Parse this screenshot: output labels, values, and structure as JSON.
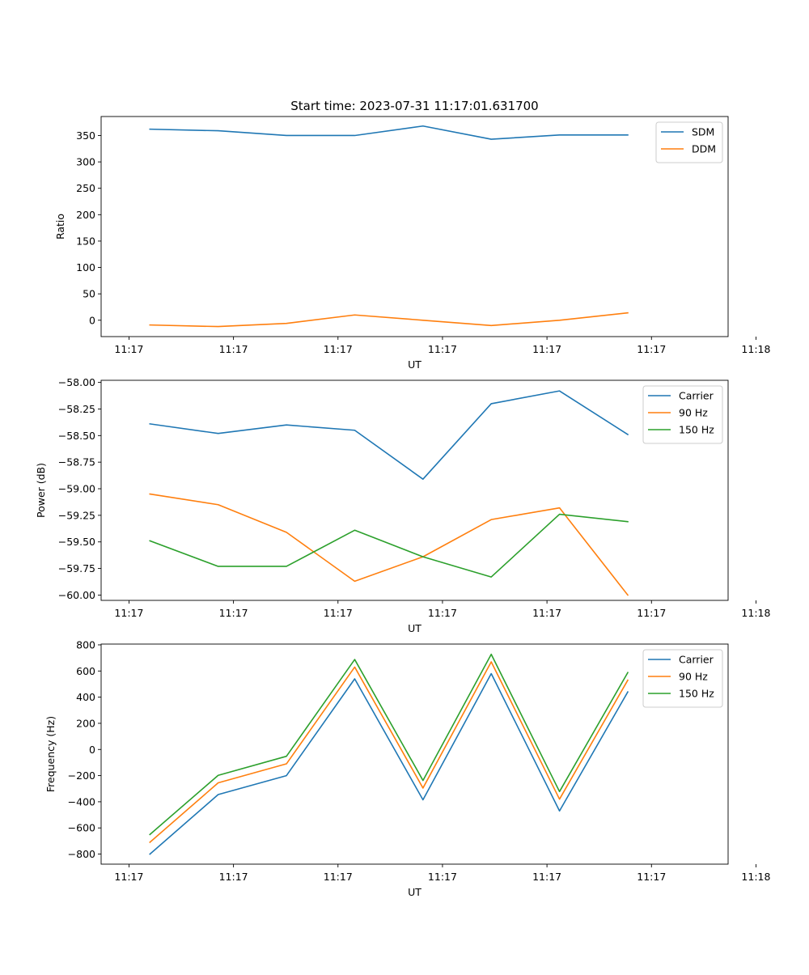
{
  "chart_data": [
    {
      "type": "line",
      "title": "Start time: 2023-07-31 11:17:01.631700",
      "xlabel": "UT",
      "ylabel": "Ratio",
      "xlim": [
        -0.4,
        8.6
      ],
      "ylim": [
        -31,
        386
      ],
      "yticks": [
        0,
        50,
        100,
        150,
        200,
        250,
        300,
        350
      ],
      "ytick_labels": [
        "0",
        "50",
        "100",
        "150",
        "200",
        "250",
        "300",
        "350"
      ],
      "xticks": [
        0,
        1.5,
        3,
        4.5,
        6,
        7.5,
        9
      ],
      "xtick_labels": [
        "11:17",
        "11:17",
        "11:17",
        "11:17",
        "11:17",
        "11:17",
        "11:18"
      ],
      "x": [
        0.3,
        1.28,
        2.26,
        3.24,
        4.22,
        5.2,
        6.18,
        7.16
      ],
      "legend_position": "top-right",
      "series": [
        {
          "name": "SDM",
          "color": "#1f77b4",
          "values": [
            362,
            359,
            350,
            350,
            368,
            343,
            351,
            351
          ]
        },
        {
          "name": "DDM",
          "color": "#ff7f0e",
          "values": [
            -9,
            -12,
            -6,
            10,
            0,
            -10,
            0,
            14
          ]
        }
      ]
    },
    {
      "type": "line",
      "title": "",
      "xlabel": "UT",
      "ylabel": "Power (dB)",
      "xlim": [
        -0.4,
        8.6
      ],
      "ylim": [
        -60.05,
        -57.98
      ],
      "yticks": [
        -60.0,
        -59.75,
        -59.5,
        -59.25,
        -59.0,
        -58.75,
        -58.5,
        -58.25,
        -58.0
      ],
      "ytick_labels": [
        "−60.00",
        "−59.75",
        "−59.50",
        "−59.25",
        "−59.00",
        "−58.75",
        "−58.50",
        "−58.25",
        "−58.00"
      ],
      "xticks": [
        0,
        1.5,
        3,
        4.5,
        6,
        7.5,
        9
      ],
      "xtick_labels": [
        "11:17",
        "11:17",
        "11:17",
        "11:17",
        "11:17",
        "11:17",
        "11:18"
      ],
      "x": [
        0.3,
        1.28,
        2.26,
        3.24,
        4.22,
        5.2,
        6.18,
        7.16
      ],
      "legend_position": "top-right",
      "series": [
        {
          "name": "Carrier",
          "color": "#1f77b4",
          "values": [
            -58.39,
            -58.48,
            -58.4,
            -58.45,
            -58.91,
            -58.2,
            -58.08,
            -58.49
          ]
        },
        {
          "name": "90 Hz",
          "color": "#ff7f0e",
          "values": [
            -59.05,
            -59.15,
            -59.41,
            -59.87,
            -59.64,
            -59.29,
            -59.18,
            -60.0
          ]
        },
        {
          "name": "150 Hz",
          "color": "#2ca02c",
          "values": [
            -59.49,
            -59.73,
            -59.73,
            -59.39,
            -59.64,
            -59.83,
            -59.24,
            -59.31
          ]
        }
      ]
    },
    {
      "type": "line",
      "title": "",
      "xlabel": "UT",
      "ylabel": "Frequency (Hz)",
      "xlim": [
        -0.4,
        8.6
      ],
      "ylim": [
        -877,
        806
      ],
      "yticks": [
        -800,
        -600,
        -400,
        -200,
        0,
        200,
        400,
        600,
        800
      ],
      "ytick_labels": [
        "−800",
        "−600",
        "−400",
        "−200",
        "0",
        "200",
        "400",
        "600",
        "800"
      ],
      "xticks": [
        0,
        1.5,
        3,
        4.5,
        6,
        7.5,
        9
      ],
      "xtick_labels": [
        "11:17",
        "11:17",
        "11:17",
        "11:17",
        "11:17",
        "11:17",
        "11:18"
      ],
      "x": [
        0.3,
        1.28,
        2.26,
        3.24,
        4.22,
        5.2,
        6.18,
        7.16
      ],
      "legend_position": "top-right",
      "series": [
        {
          "name": "Carrier",
          "color": "#1f77b4",
          "values": [
            -800,
            -345,
            -200,
            540,
            -385,
            580,
            -470,
            440
          ]
        },
        {
          "name": "90 Hz",
          "color": "#ff7f0e",
          "values": [
            -710,
            -255,
            -110,
            630,
            -295,
            670,
            -380,
            530
          ]
        },
        {
          "name": "150 Hz",
          "color": "#2ca02c",
          "values": [
            -650,
            -198,
            -52,
            688,
            -237,
            728,
            -322,
            588
          ]
        }
      ]
    }
  ]
}
